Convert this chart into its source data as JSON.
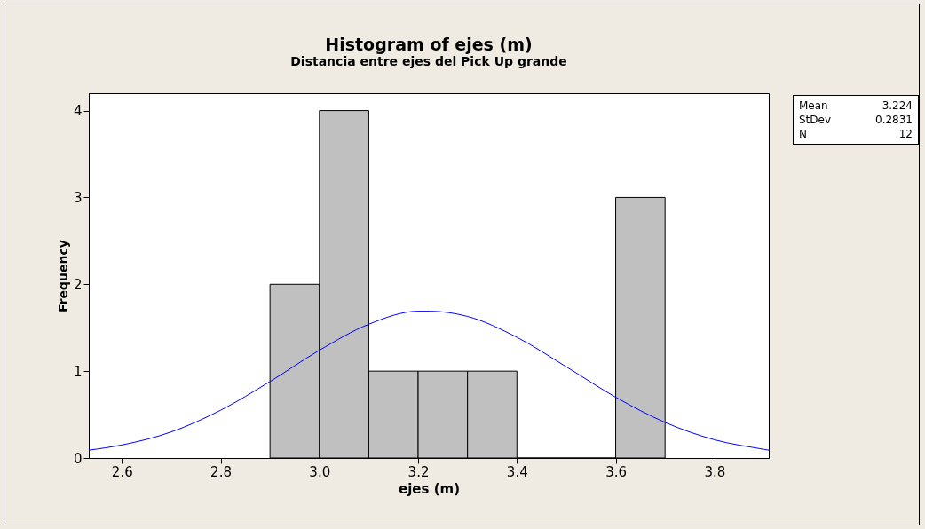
{
  "chart_data": {
    "type": "histogram",
    "title": "Histogram of ejes (m)",
    "subtitle": "Distancia entre ejes del Pick Up grande",
    "xlabel": "ejes (m)",
    "ylabel": "Frequency",
    "bins": [
      2.9,
      3.0,
      3.1,
      3.2,
      3.3,
      3.4,
      3.5,
      3.6,
      3.7
    ],
    "values": [
      2,
      4,
      1,
      1,
      1,
      0,
      0,
      3
    ],
    "color": "#c0c0c0",
    "series": [
      {
        "type": "line",
        "color": "#0000ff",
        "x": [
          2.533,
          2.6,
          2.7,
          2.8,
          2.9,
          3.0,
          3.1,
          3.2,
          3.224,
          3.3,
          3.4,
          3.5,
          3.6,
          3.7,
          3.8,
          3.9,
          3.91
        ],
        "values": [
          0.09,
          0.15,
          0.3,
          0.55,
          0.88,
          1.24,
          1.54,
          1.69,
          1.69,
          1.63,
          1.39,
          1.05,
          0.7,
          0.41,
          0.21,
          0.1,
          0.09
        ]
      }
    ],
    "xlim": [
      2.533,
      3.91
    ],
    "xticks": [
      2.6,
      2.8,
      {
        "value": 3,
        "label": "3.0"
      },
      3.2,
      3.4,
      3.6,
      3.8
    ],
    "ylim": [
      0,
      4.2
    ],
    "yticks": [
      0,
      1,
      2,
      3,
      4
    ],
    "annotations": [
      "Mean 3.224",
      "StDev 0.2831",
      "N 12"
    ],
    "grid": false
  }
}
